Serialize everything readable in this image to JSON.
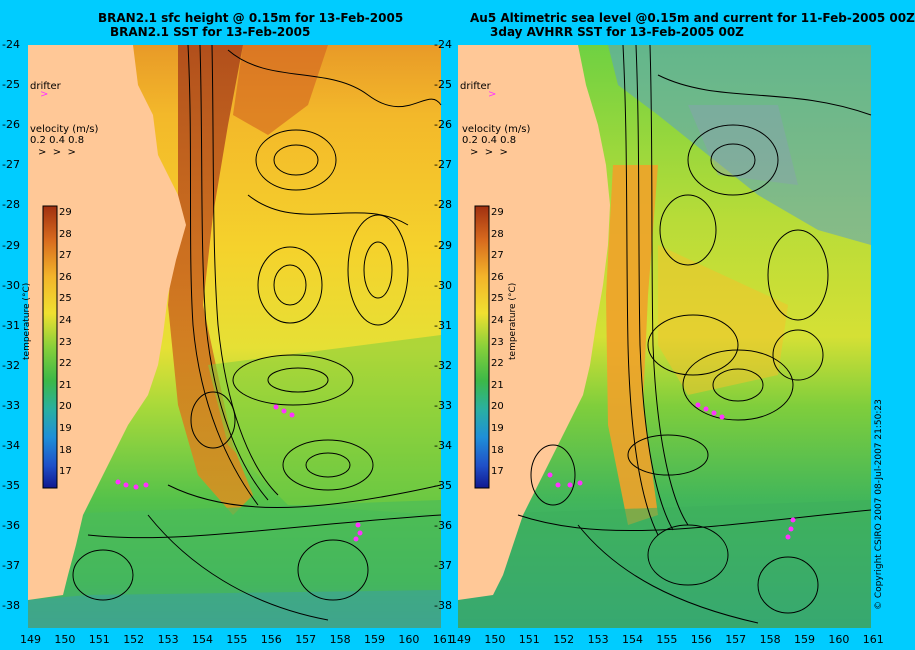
{
  "left_panel": {
    "title_line1": "BRAN2.1 sfc height @ 0.15m for 13-Feb-2005",
    "title_line2": "BRAN2.1 SST for 13-Feb-2005",
    "drifter_label": "drifter",
    "velocity_label": "velocity (m/s)",
    "velocity_scale": "0.2 0.4 0.8",
    "colorbar_title": "temperature (°C)"
  },
  "right_panel": {
    "title_line1": "Au5 Altimetric sea level  @0.15m and current for 11-Feb-2005 00Z",
    "title_line2": "3day AVHRR SST for 13-Feb-2005 00Z",
    "drifter_label": "drifter",
    "velocity_label": "velocity (m/s)",
    "velocity_scale": "0.2 0.4 0.8",
    "colorbar_title": "temperature (°C)"
  },
  "y_ticks": [
    "-24",
    "-25",
    "-26",
    "-27",
    "-28",
    "-29",
    "-30",
    "-31",
    "-32",
    "-33",
    "-34",
    "-35",
    "-36",
    "-37",
    "-38"
  ],
  "x_ticks": [
    "149",
    "150",
    "151",
    "152",
    "153",
    "154",
    "155",
    "156",
    "157",
    "158",
    "159",
    "160",
    "161"
  ],
  "colorbar_ticks": [
    "29",
    "28",
    "27",
    "26",
    "25",
    "24",
    "23",
    "22",
    "21",
    "20",
    "19",
    "18",
    "17"
  ],
  "copyright": "© Copyright CSIRO 2007  08-Jul-2007 21:50:23",
  "colors": {
    "background": "#00ccff",
    "land": "#ffc897",
    "drifter": "#ff33ff"
  }
}
